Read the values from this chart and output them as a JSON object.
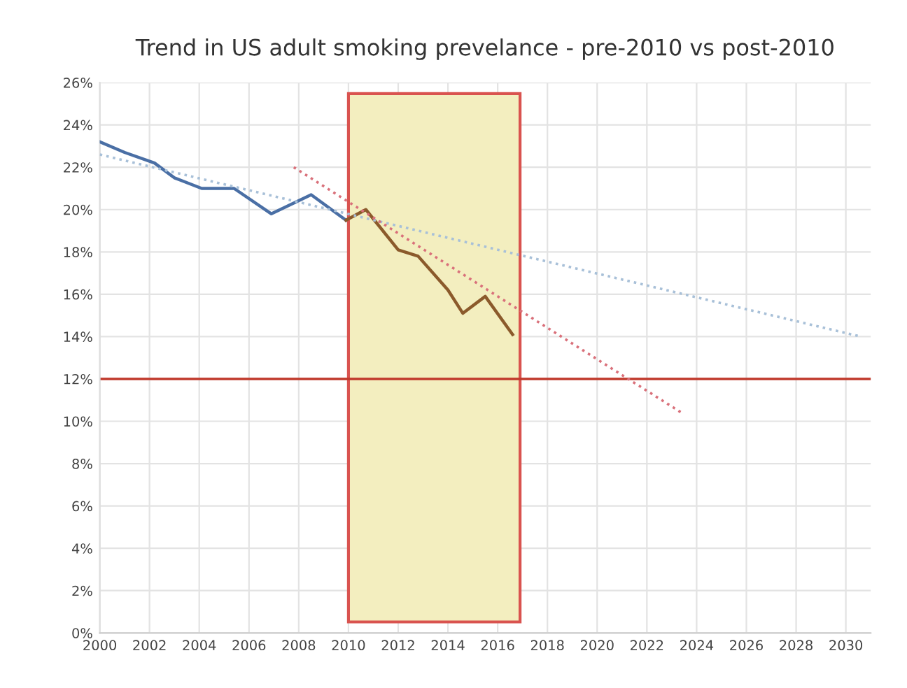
{
  "chart_data": {
    "type": "line",
    "title": "Trend in US adult smoking prevelance - pre-2010 vs post-2010",
    "series": [
      {
        "color": "#4a6fa5",
        "x": [
          2000,
          2001,
          2002.2,
          2003,
          2004.1,
          2005.4,
          2006.9,
          2008.5,
          2009.9
        ],
        "values": [
          23.2,
          22.7,
          22.2,
          21.5,
          21.0,
          21.0,
          19.8,
          20.7,
          19.5
        ]
      },
      {
        "color": "#8b5a2b",
        "x": [
          2009.9,
          2010.7,
          2012,
          2012.8,
          2014,
          2014.6,
          2015.5,
          2016.6
        ],
        "values": [
          19.5,
          20.0,
          18.1,
          17.8,
          16.2,
          15.1,
          15.9,
          14.1
        ]
      },
      {
        "color": "#a8c0d8",
        "line_style": "dotted",
        "x": [
          2000,
          2030.6
        ],
        "values": [
          22.6,
          14.0
        ]
      },
      {
        "color": "#d9707a",
        "line_style": "dotted",
        "x": [
          2007.8,
          2023.4
        ],
        "values": [
          22.0,
          10.4
        ]
      }
    ],
    "xlim": [
      2000,
      2031
    ],
    "xticks": [
      2000,
      2002,
      2004,
      2006,
      2008,
      2010,
      2012,
      2014,
      2016,
      2018,
      2020,
      2022,
      2024,
      2026,
      2028,
      2030
    ],
    "ylim": [
      0,
      26
    ],
    "yticks": [
      {
        "value": 0,
        "label": "0%"
      },
      {
        "value": 2,
        "label": "2%"
      },
      {
        "value": 4,
        "label": "4%"
      },
      {
        "value": 6,
        "label": "6%"
      },
      {
        "value": 8,
        "label": "8%"
      },
      {
        "value": 10,
        "label": "10%"
      },
      {
        "value": 12,
        "label": "12%"
      },
      {
        "value": 14,
        "label": "14%"
      },
      {
        "value": 16,
        "label": "16%"
      },
      {
        "value": 18,
        "label": "18%"
      },
      {
        "value": 20,
        "label": "20%"
      },
      {
        "value": 22,
        "label": "22%"
      },
      {
        "value": 24,
        "label": "24%"
      },
      {
        "value": 26,
        "label": "26%"
      }
    ],
    "ref_lines": [
      {
        "axis": "y",
        "value": 12,
        "color": "#c0392b"
      }
    ],
    "bands": [
      {
        "axis": "x",
        "from": 2010,
        "to": 2016.9,
        "color": "#f3eebf"
      }
    ],
    "grid": true,
    "legend": false
  }
}
